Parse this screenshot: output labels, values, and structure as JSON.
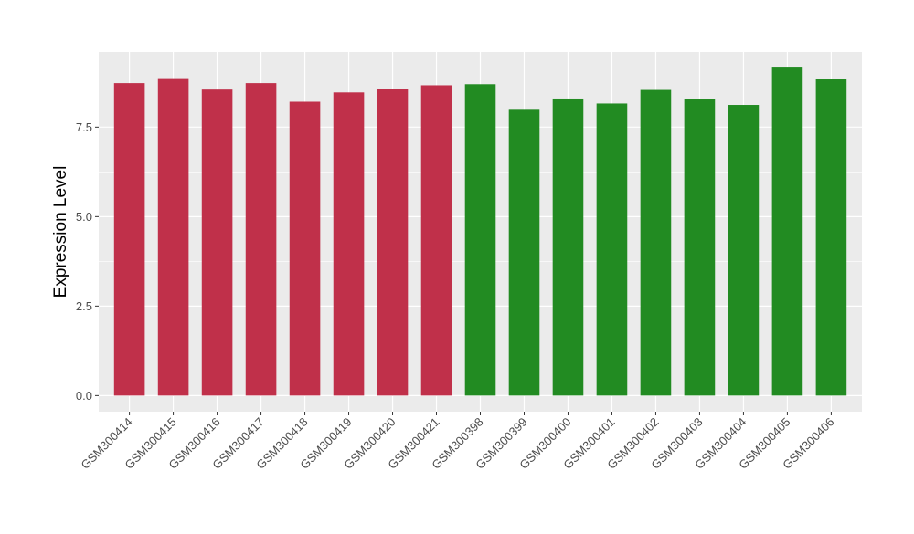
{
  "chart_data": {
    "type": "bar",
    "title": "",
    "xlabel": "",
    "ylabel": "Expression Level",
    "ylim": [
      -0.45,
      9.6
    ],
    "yticks": [
      0.0,
      2.5,
      5.0,
      7.5
    ],
    "ytick_labels": [
      "0.0",
      "2.5",
      "5.0",
      "7.5"
    ],
    "grid": true,
    "legend": "none",
    "panel_color": "#ebebeb",
    "categories": [
      "GSM300414",
      "GSM300415",
      "GSM300416",
      "GSM300417",
      "GSM300418",
      "GSM300419",
      "GSM300420",
      "GSM300421",
      "GSM300398",
      "GSM300399",
      "GSM300400",
      "GSM300401",
      "GSM300402",
      "GSM300403",
      "GSM300404",
      "GSM300405",
      "GSM300406"
    ],
    "values": [
      8.73,
      8.87,
      8.55,
      8.73,
      8.21,
      8.47,
      8.57,
      8.67,
      8.7,
      8.01,
      8.3,
      8.16,
      8.54,
      8.28,
      8.12,
      9.19,
      8.85
    ],
    "bar_colors": [
      "#c0304a",
      "#c0304a",
      "#c0304a",
      "#c0304a",
      "#c0304a",
      "#c0304a",
      "#c0304a",
      "#c0304a",
      "#228b22",
      "#228b22",
      "#228b22",
      "#228b22",
      "#228b22",
      "#228b22",
      "#228b22",
      "#228b22",
      "#228b22"
    ]
  }
}
